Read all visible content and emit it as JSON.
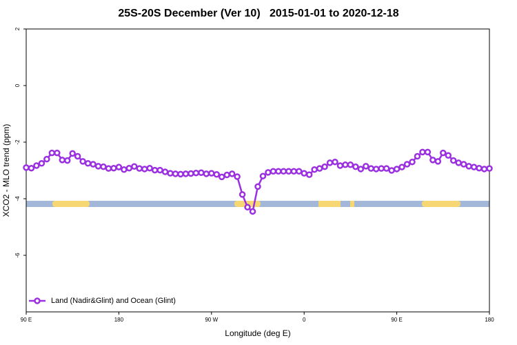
{
  "chart_data": {
    "type": "line",
    "title": "25S-20S December (Ver 10)   2015-01-01 to 2020-12-18",
    "xlabel": "Longitude (deg E)",
    "ylabel": "XCO2 - MLO trend (ppm)",
    "xlim": [
      90,
      540
    ],
    "ylim": [
      -8,
      2
    ],
    "xticks": [
      {
        "value": 90,
        "label": "90 E"
      },
      180,
      {
        "value": 270,
        "label": "90 W"
      },
      {
        "value": 360,
        "label": "0"
      },
      {
        "value": 450,
        "label": "90 E"
      },
      {
        "value": 540,
        "label": "180"
      }
    ],
    "yticks": [
      2,
      0,
      -2,
      -4,
      -6
    ],
    "legend": "bottom-left",
    "x": [
      90,
      95,
      100,
      105,
      110,
      115,
      120,
      125,
      130,
      135,
      140,
      145,
      150,
      155,
      160,
      165,
      170,
      175,
      180,
      185,
      190,
      195,
      200,
      205,
      210,
      215,
      220,
      225,
      230,
      235,
      240,
      245,
      250,
      255,
      260,
      265,
      270,
      275,
      280,
      285,
      290,
      295,
      300,
      305,
      310,
      315,
      320,
      325,
      330,
      335,
      340,
      345,
      350,
      355,
      360,
      365,
      370,
      375,
      380,
      385,
      390,
      395,
      400,
      405,
      410,
      415,
      420,
      425,
      430,
      435,
      440,
      445,
      450,
      455,
      460,
      465,
      470,
      475,
      480,
      485,
      490,
      495,
      500,
      505,
      510,
      515,
      520,
      525,
      530,
      535,
      540
    ],
    "series": [
      {
        "name": "Land (Nadir&Glint) and Ocean (Glint)",
        "color": "#9b30e0",
        "values": [
          -2.9,
          -2.92,
          -2.83,
          -2.75,
          -2.6,
          -2.38,
          -2.38,
          -2.63,
          -2.65,
          -2.4,
          -2.5,
          -2.68,
          -2.75,
          -2.78,
          -2.85,
          -2.87,
          -2.93,
          -2.92,
          -2.88,
          -2.97,
          -2.92,
          -2.86,
          -2.93,
          -2.95,
          -2.92,
          -2.99,
          -2.99,
          -3.05,
          -3.1,
          -3.12,
          -3.13,
          -3.12,
          -3.11,
          -3.09,
          -3.08,
          -3.12,
          -3.1,
          -3.14,
          -3.23,
          -3.16,
          -3.12,
          -3.22,
          -3.85,
          -4.3,
          -4.45,
          -3.57,
          -3.2,
          -3.07,
          -3.03,
          -3.03,
          -3.03,
          -3.03,
          -3.03,
          -3.03,
          -3.1,
          -3.15,
          -2.97,
          -2.93,
          -2.87,
          -2.73,
          -2.7,
          -2.83,
          -2.8,
          -2.8,
          -2.87,
          -2.95,
          -2.85,
          -2.93,
          -2.95,
          -2.93,
          -2.93,
          -3.0,
          -2.95,
          -2.88,
          -2.78,
          -2.7,
          -2.5,
          -2.35,
          -2.35,
          -2.63,
          -2.68,
          -2.38,
          -2.47,
          -2.65,
          -2.73,
          -2.78,
          -2.85,
          -2.88,
          -2.92,
          -2.95,
          -2.93
        ]
      }
    ]
  }
}
